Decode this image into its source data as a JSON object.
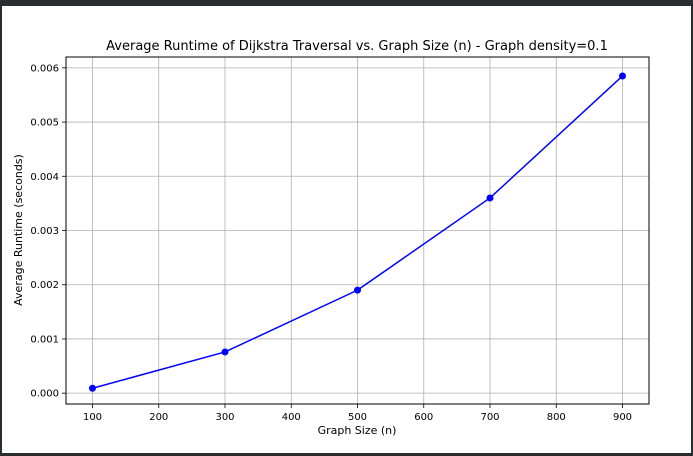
{
  "chart_data": {
    "type": "line",
    "title": "Average Runtime of Dijkstra Traversal vs. Graph Size (n) - Graph density=0.1",
    "xlabel": "Graph Size (n)",
    "ylabel": "Average Runtime (seconds)",
    "x": [
      100,
      300,
      500,
      700,
      900
    ],
    "series": [
      {
        "values": [
          9e-05,
          0.00076,
          0.0019,
          0.0036,
          0.00585
        ]
      }
    ],
    "xlim": [
      60,
      940
    ],
    "ylim": [
      -0.0002,
      0.0062
    ],
    "xticks": [
      100,
      200,
      300,
      400,
      500,
      600,
      700,
      800,
      900
    ],
    "yticks": [
      0.0,
      0.001,
      0.002,
      0.003,
      0.004,
      0.005,
      0.006
    ],
    "xtick_labels": [
      "100",
      "200",
      "300",
      "400",
      "500",
      "600",
      "700",
      "800",
      "900"
    ],
    "ytick_labels": [
      "0.000",
      "0.001",
      "0.002",
      "0.003",
      "0.004",
      "0.005",
      "0.006"
    ],
    "grid": true,
    "line_color": "#0000ff",
    "marker": "circle"
  }
}
